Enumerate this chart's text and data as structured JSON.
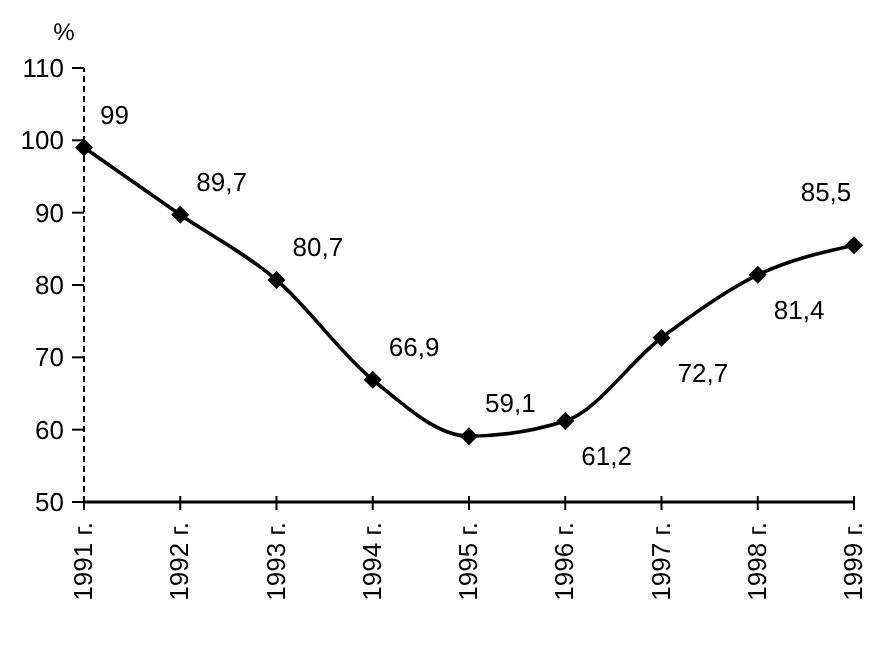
{
  "chart_data": {
    "type": "line",
    "ylabel": "%",
    "categories": [
      "1991 г.",
      "1992 г.",
      "1993 г.",
      "1994 г.",
      "1995 г.",
      "1996 г.",
      "1997 г.",
      "1998 г.",
      "1999 г."
    ],
    "series": [
      {
        "color": "#000000",
        "values": [
          99,
          89.7,
          80.7,
          66.9,
          59.1,
          61.2,
          72.7,
          81.4,
          85.5
        ],
        "value_labels": [
          "99",
          "89,7",
          "80,7",
          "66,9",
          "59,1",
          "61,2",
          "72,7",
          "81,4",
          "85,5"
        ]
      }
    ],
    "ylim": [
      50,
      110
    ],
    "yticks": [
      50,
      60,
      70,
      80,
      90,
      100,
      110
    ],
    "grid": false,
    "marker": "diamond",
    "line_style": "solid"
  }
}
